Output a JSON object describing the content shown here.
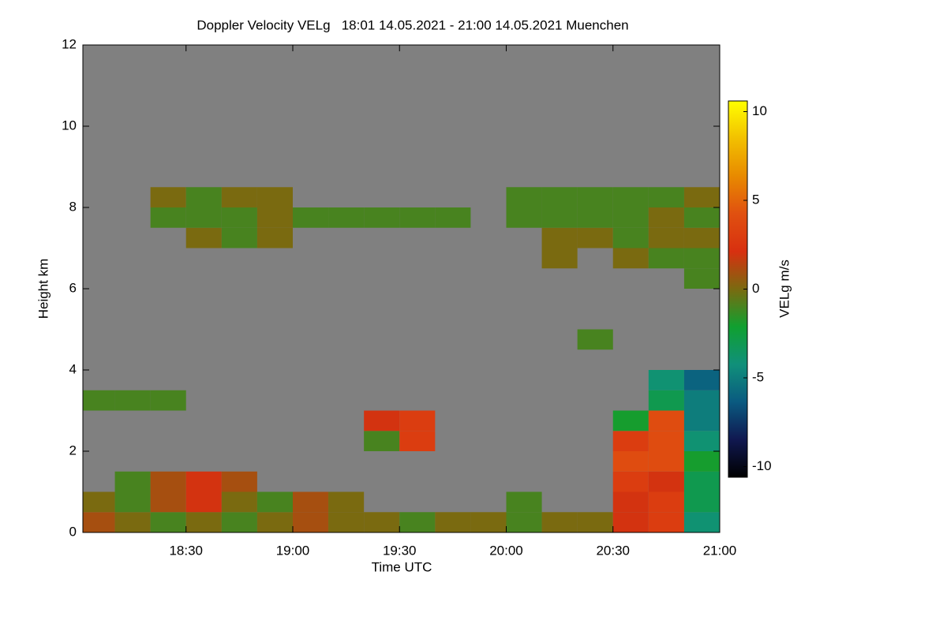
{
  "chart_data": {
    "type": "heatmap",
    "title": "Doppler Velocity VELg   18:01 14.05.2021 - 21:00 14.05.2021 Muenchen",
    "x_label": "Time UTC",
    "y_label": "Height km",
    "colorbar_label": "VELg m/s",
    "background": "#808080",
    "xlim": [
      1081,
      1260
    ],
    "xticks": [
      {
        "value": 1110,
        "label": "18:30"
      },
      {
        "value": 1140,
        "label": "19:00"
      },
      {
        "value": 1170,
        "label": "19:30"
      },
      {
        "value": 1200,
        "label": "20:00"
      },
      {
        "value": 1230,
        "label": "20:30"
      },
      {
        "value": 1260,
        "label": "21:00"
      }
    ],
    "ylim": [
      0,
      12
    ],
    "yticks": [
      0,
      2,
      4,
      6,
      8,
      10,
      12
    ],
    "clim": [
      -10.6,
      10.6
    ],
    "cticks": [
      -10,
      -5,
      0,
      5,
      10
    ],
    "colors": [
      "#000000",
      "#101850",
      "#0a5a80",
      "#10907a",
      "#10a030",
      "#7a6a10",
      "#d83010",
      "#e05010",
      "#e88a00",
      "#f2c000",
      "#ffff00"
    ],
    "xbins": [
      1081,
      1090,
      1100,
      1110,
      1120,
      1130,
      1140,
      1150,
      1160,
      1170,
      1180,
      1190,
      1200,
      1210,
      1220,
      1230,
      1240,
      1250,
      1260
    ],
    "ybins": [
      0,
      0.5,
      1,
      1.5,
      2,
      2.5,
      3,
      3.5,
      4,
      4.5,
      5,
      5.5,
      6,
      6.5,
      7,
      7.5,
      8,
      8.5,
      9,
      9.5,
      10,
      10.5,
      11,
      11.5,
      12
    ],
    "z": [
      [
        1,
        0,
        -1,
        0,
        -1,
        0,
        1,
        0,
        0,
        -1,
        0,
        0,
        -1,
        0,
        0,
        2,
        3,
        -4
      ],
      [
        0,
        -1,
        1,
        2,
        0,
        -1,
        1,
        0,
        null,
        null,
        null,
        null,
        -1,
        null,
        null,
        2,
        3,
        -3
      ],
      [
        null,
        -1,
        1,
        2,
        1,
        null,
        null,
        null,
        null,
        null,
        null,
        null,
        null,
        null,
        null,
        3,
        2,
        -3
      ],
      [
        null,
        null,
        null,
        null,
        null,
        null,
        null,
        null,
        null,
        null,
        null,
        null,
        null,
        null,
        null,
        4,
        4,
        -2
      ],
      [
        null,
        null,
        null,
        null,
        null,
        null,
        null,
        null,
        -1,
        3,
        null,
        null,
        null,
        null,
        null,
        3,
        4,
        -4
      ],
      [
        null,
        null,
        null,
        null,
        null,
        null,
        null,
        null,
        2,
        3,
        null,
        null,
        null,
        null,
        null,
        -2,
        4,
        -5
      ],
      [
        -1,
        -1,
        -1,
        null,
        null,
        null,
        null,
        null,
        null,
        null,
        null,
        null,
        null,
        null,
        null,
        null,
        -3,
        -5
      ],
      [
        null,
        null,
        null,
        null,
        null,
        null,
        null,
        null,
        null,
        null,
        null,
        null,
        null,
        null,
        null,
        null,
        -4,
        -6
      ],
      [
        null,
        null,
        null,
        null,
        null,
        null,
        null,
        null,
        null,
        null,
        null,
        null,
        null,
        null,
        null,
        null,
        null,
        null
      ],
      [
        null,
        null,
        null,
        null,
        null,
        null,
        null,
        null,
        null,
        null,
        null,
        null,
        null,
        null,
        -1,
        null,
        null,
        null
      ],
      [
        null,
        null,
        null,
        null,
        null,
        null,
        null,
        null,
        null,
        null,
        null,
        null,
        null,
        null,
        null,
        null,
        null,
        null
      ],
      [
        null,
        null,
        null,
        null,
        null,
        null,
        null,
        null,
        null,
        null,
        null,
        null,
        null,
        null,
        null,
        null,
        null,
        null
      ],
      [
        null,
        null,
        null,
        null,
        null,
        null,
        null,
        null,
        null,
        null,
        null,
        null,
        null,
        null,
        null,
        null,
        null,
        -1
      ],
      [
        null,
        null,
        null,
        null,
        null,
        null,
        null,
        null,
        null,
        null,
        null,
        null,
        null,
        0,
        null,
        0,
        -1,
        -1
      ],
      [
        null,
        null,
        null,
        0,
        -1,
        0,
        null,
        null,
        null,
        null,
        null,
        null,
        null,
        0,
        0,
        -1,
        0,
        0
      ],
      [
        null,
        null,
        -1,
        -1,
        -1,
        0,
        -1,
        -1,
        -1,
        -1,
        -1,
        null,
        -1,
        -1,
        -1,
        -1,
        0,
        -1
      ],
      [
        null,
        null,
        0,
        -1,
        0,
        0,
        null,
        null,
        null,
        null,
        null,
        null,
        -1,
        -1,
        -1,
        -1,
        -1,
        0
      ],
      [
        null,
        null,
        null,
        null,
        null,
        null,
        null,
        null,
        null,
        null,
        null,
        null,
        null,
        null,
        null,
        null,
        null,
        null
      ],
      [
        null,
        null,
        null,
        null,
        null,
        null,
        null,
        null,
        null,
        null,
        null,
        null,
        null,
        null,
        null,
        null,
        null,
        null
      ],
      [
        null,
        null,
        null,
        null,
        null,
        null,
        null,
        null,
        null,
        null,
        null,
        null,
        null,
        null,
        null,
        null,
        null,
        null
      ],
      [
        null,
        null,
        null,
        null,
        null,
        null,
        null,
        null,
        null,
        null,
        null,
        null,
        null,
        null,
        null,
        null,
        null,
        null
      ],
      [
        null,
        null,
        null,
        null,
        null,
        null,
        null,
        null,
        null,
        null,
        null,
        null,
        null,
        null,
        null,
        null,
        null,
        null
      ],
      [
        null,
        null,
        null,
        null,
        null,
        null,
        null,
        null,
        null,
        null,
        null,
        null,
        null,
        null,
        null,
        null,
        null,
        null
      ],
      [
        null,
        null,
        null,
        null,
        null,
        null,
        null,
        null,
        null,
        null,
        null,
        null,
        null,
        null,
        null,
        null,
        null,
        null
      ]
    ]
  }
}
